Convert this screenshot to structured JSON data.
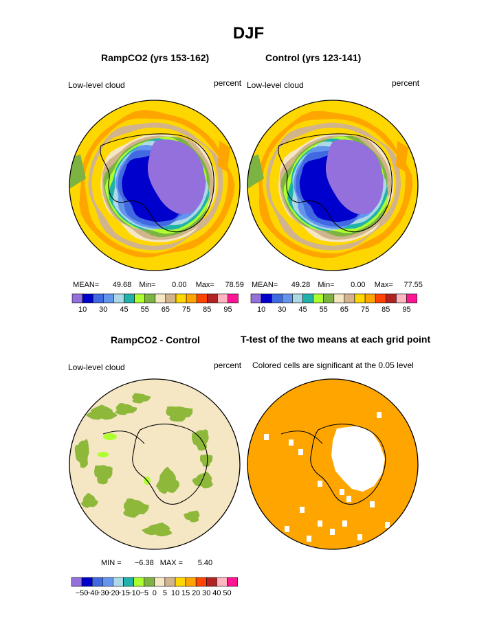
{
  "main_title": "DJF",
  "panels": {
    "top_left": {
      "title": "RampCO2 (yrs 153-162)",
      "left_label": "Low-level cloud",
      "right_label": "percent",
      "stats": {
        "mean_label": "MEAN=",
        "mean": "49.68",
        "min_label": "Min=",
        "min": "0.00",
        "max_label": "Max=",
        "max": "78.59"
      }
    },
    "top_right": {
      "title": "Control (yrs 123-141)",
      "left_label": "Low-level cloud",
      "right_label": "percent",
      "stats": {
        "mean_label": "MEAN=",
        "mean": "49.28",
        "min_label": "Min=",
        "min": "0.00",
        "max_label": "Max=",
        "max": "77.55"
      }
    },
    "bottom_left": {
      "title": "RampCO2 - Control",
      "left_label": "Low-level cloud",
      "right_label": "percent",
      "stats": {
        "min_label": "MIN =",
        "min": "−6.38",
        "max_label": "MAX =",
        "max": "5.40"
      }
    },
    "bottom_right": {
      "title": "T-test of the two means at each grid point",
      "subtitle": "Colored cells are significant at the 0.05 level"
    }
  },
  "colorbar_top": {
    "colors": [
      "#9370db",
      "#0000cd",
      "#4169e1",
      "#6495ed",
      "#add8e6",
      "#20b2aa",
      "#adff2f",
      "#7cb342",
      "#f5e6c4",
      "#d2b48c",
      "#ffd700",
      "#ffa500",
      "#ff4500",
      "#b22222",
      "#ffb6c1",
      "#ff1493"
    ],
    "ticks": [
      "10",
      "30",
      "45",
      "55",
      "65",
      "75",
      "85",
      "95"
    ]
  },
  "colorbar_diff": {
    "colors": [
      "#9370db",
      "#0000cd",
      "#4169e1",
      "#6495ed",
      "#add8e6",
      "#20b2aa",
      "#adff2f",
      "#7cb342",
      "#f5e6c4",
      "#d2b48c",
      "#ffd700",
      "#ffa500",
      "#ff4500",
      "#b22222",
      "#ffb6c1",
      "#ff1493"
    ],
    "ticks": [
      "−50",
      "−40",
      "−30",
      "−20",
      "−15",
      "−10",
      "−5",
      "0",
      "5",
      "10",
      "15",
      "20",
      "30",
      "40",
      "50"
    ]
  },
  "map_colors": {
    "ocean_far": "#ffd700",
    "band_orange": "#ffa500",
    "band_tan": "#d2b48c",
    "band_cream": "#f5e6c4",
    "band_green": "#7cb342",
    "band_lime": "#adff2f",
    "band_teal": "#20b2aa",
    "band_lightblue": "#add8e6",
    "band_cornflower": "#6495ed",
    "band_royal": "#4169e1",
    "band_navy": "#0000cd",
    "interior": "#9370db",
    "diff_bg": "#f5e6c4",
    "diff_patch": "#8db83a",
    "diff_light": "#adff2f",
    "ttest_bg": "#ffa500",
    "ttest_blank": "#ffffff"
  }
}
